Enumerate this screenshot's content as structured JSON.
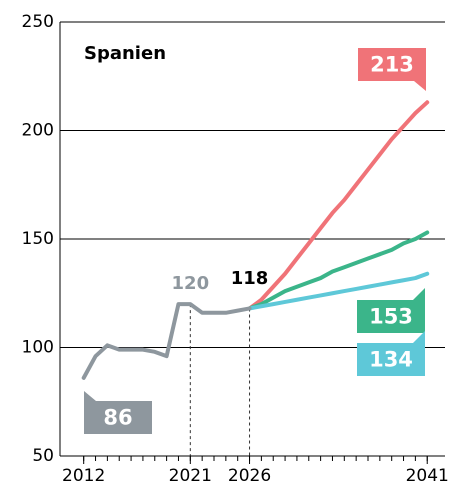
{
  "chart_data": {
    "type": "line",
    "title": "Spanien",
    "xlim": [
      2010,
      2042.5
    ],
    "xticks": [
      2012,
      2021,
      2026,
      2041
    ],
    "ylim": [
      50,
      250
    ],
    "yticks": [
      50,
      100,
      150,
      200,
      250
    ],
    "grid": true,
    "series": [
      {
        "color": "#8e979e",
        "x": [
          2012,
          2013,
          2014,
          2015,
          2016,
          2017,
          2018,
          2019,
          2020,
          2021,
          2022,
          2023,
          2024,
          2025,
          2026
        ],
        "values": [
          86,
          96,
          101,
          99,
          99,
          99,
          98,
          96,
          120,
          120,
          116,
          116,
          116,
          117,
          118
        ]
      },
      {
        "color": "#f07378",
        "x": [
          2026,
          2027,
          2028,
          2029,
          2030,
          2031,
          2032,
          2033,
          2034,
          2035,
          2036,
          2037,
          2038,
          2039,
          2040,
          2041
        ],
        "values": [
          118,
          122,
          128,
          134,
          141,
          148,
          155,
          162,
          168,
          175,
          182,
          189,
          196,
          202,
          208,
          213
        ]
      },
      {
        "color": "#3bb58a",
        "x": [
          2026,
          2027,
          2028,
          2029,
          2030,
          2031,
          2032,
          2033,
          2034,
          2035,
          2036,
          2037,
          2038,
          2039,
          2040,
          2041
        ],
        "values": [
          118,
          120,
          123,
          126,
          128,
          130,
          132,
          135,
          137,
          139,
          141,
          143,
          145,
          148,
          150,
          153
        ]
      },
      {
        "color": "#5ec8d8",
        "x": [
          2026,
          2027,
          2028,
          2029,
          2030,
          2031,
          2032,
          2033,
          2034,
          2035,
          2036,
          2037,
          2038,
          2039,
          2040,
          2041
        ],
        "values": [
          118,
          119,
          120,
          121,
          122,
          123,
          124,
          125,
          126,
          127,
          128,
          129,
          130,
          131,
          132,
          134
        ]
      }
    ]
  }
}
